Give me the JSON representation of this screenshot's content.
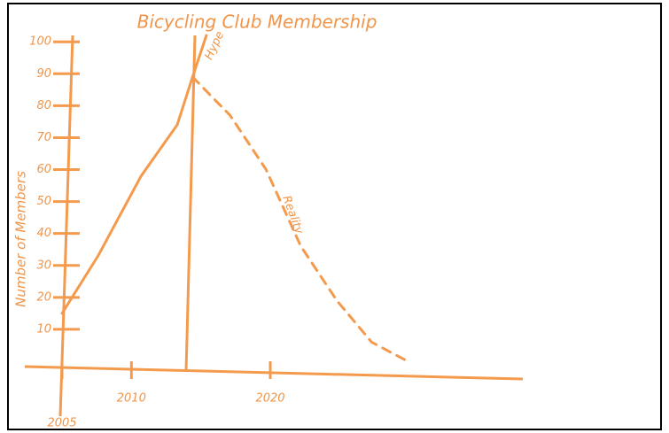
{
  "chart_data": {
    "type": "line",
    "title": "Bicycling Club Membership",
    "y_label": "Number of Members",
    "xlim": [
      2005,
      2038
    ],
    "ylim": [
      0,
      102
    ],
    "xticks": [
      2005,
      2010,
      2020
    ],
    "yticks": [
      10,
      20,
      30,
      40,
      50,
      60,
      70,
      80,
      90,
      100
    ],
    "series": [
      {
        "name": "Hype",
        "color": "#f39a4d",
        "dashed": false,
        "x": [
          2005,
          2007.6,
          2010.7,
          2013.3,
          2014.4,
          2015.4
        ],
        "values": [
          15,
          33,
          58,
          74,
          89,
          102
        ]
      },
      {
        "name": "Reality",
        "color": "#f39a4d",
        "dashed": true,
        "x": [
          2014.4,
          2017.1,
          2019.7,
          2022.2,
          2024.8,
          2027.3,
          2029.9
        ],
        "values": [
          89,
          77,
          60,
          36,
          19,
          6,
          0
        ]
      }
    ]
  }
}
